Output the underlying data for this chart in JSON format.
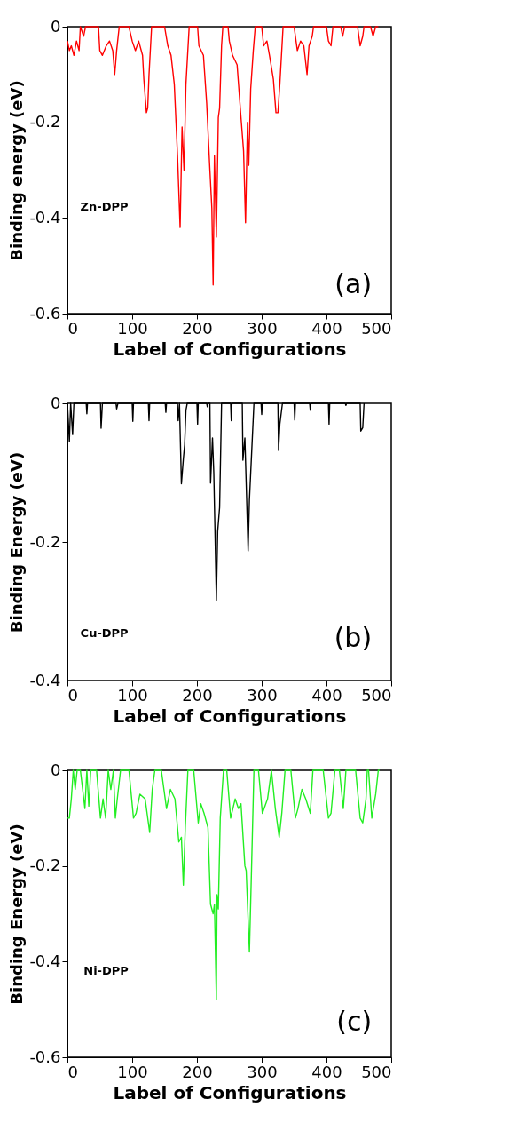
{
  "chart_data": [
    {
      "type": "line",
      "xlabel": "Label of Configurations",
      "ylabel": "Binding energy (eV)",
      "annotations": [
        "Zn-DPP",
        "(a)"
      ],
      "xlim": [
        0,
        500
      ],
      "xticks": [
        0,
        100,
        200,
        300,
        400,
        500
      ],
      "ylim": [
        -0.6,
        0
      ],
      "yticks": [
        0,
        -0.2,
        -0.4,
        -0.6
      ],
      "grid": false,
      "series": [
        {
          "color": "#ff0000",
          "x": [
            0,
            3,
            6,
            10,
            14,
            18,
            20,
            25,
            28,
            48,
            50,
            54,
            60,
            65,
            70,
            73,
            76,
            80,
            95,
            100,
            105,
            110,
            116,
            118,
            122,
            124,
            126,
            130,
            150,
            155,
            160,
            165,
            170,
            174,
            177,
            180,
            183,
            188,
            201,
            203,
            210,
            215,
            220,
            223,
            225,
            227,
            230,
            233,
            235,
            238,
            240,
            248,
            250,
            255,
            262,
            268,
            272,
            275,
            278,
            280,
            283,
            287,
            290,
            300,
            303,
            308,
            312,
            318,
            322,
            325,
            328,
            333,
            350,
            355,
            360,
            365,
            370,
            373,
            378,
            380,
            400,
            403,
            407,
            410,
            422,
            425,
            428,
            448,
            452,
            456,
            458,
            468,
            472,
            476,
            480
          ],
          "values": [
            -0.03,
            -0.05,
            -0.04,
            -0.06,
            -0.03,
            -0.05,
            0,
            -0.02,
            0,
            0,
            -0.05,
            -0.06,
            -0.04,
            -0.03,
            -0.05,
            -0.1,
            -0.05,
            0,
            0,
            -0.03,
            -0.05,
            -0.03,
            -0.06,
            -0.11,
            -0.18,
            -0.17,
            -0.1,
            0,
            0,
            -0.04,
            -0.06,
            -0.12,
            -0.27,
            -0.42,
            -0.21,
            -0.3,
            -0.12,
            0,
            0,
            -0.04,
            -0.06,
            -0.16,
            -0.3,
            -0.38,
            -0.54,
            -0.27,
            -0.44,
            -0.19,
            -0.17,
            -0.04,
            0,
            0,
            -0.03,
            -0.06,
            -0.08,
            -0.19,
            -0.26,
            -0.41,
            -0.2,
            -0.29,
            -0.13,
            -0.05,
            0,
            0,
            -0.04,
            -0.03,
            -0.06,
            -0.11,
            -0.18,
            -0.18,
            -0.12,
            0,
            0,
            -0.05,
            -0.03,
            -0.04,
            -0.1,
            -0.04,
            -0.02,
            0,
            0,
            -0.03,
            -0.04,
            0,
            0,
            -0.02,
            0,
            0,
            -0.04,
            -0.02,
            0,
            0,
            -0.02,
            0,
            0
          ]
        }
      ]
    },
    {
      "type": "line",
      "xlabel": "Label of Configurations",
      "ylabel": "Binding Energy (eV)",
      "annotations": [
        "Cu-DPP",
        "(b)"
      ],
      "xlim": [
        0,
        500
      ],
      "xticks": [
        0,
        100,
        200,
        300,
        400,
        500
      ],
      "ylim": [
        -0.4,
        0
      ],
      "yticks": [
        0,
        -0.2,
        -0.4
      ],
      "grid": false,
      "series": [
        {
          "color": "#000000",
          "x": [
            0,
            3,
            5,
            8,
            10,
            29,
            30,
            31,
            51,
            52,
            54,
            75,
            76,
            78,
            100,
            101,
            102,
            125,
            126,
            127,
            151,
            152,
            153,
            170,
            171,
            173,
            176,
            179,
            181,
            183,
            185,
            200,
            201,
            202,
            215,
            216,
            217,
            220,
            221,
            224,
            226,
            230,
            232,
            235,
            238,
            252,
            253,
            254,
            270,
            271,
            274,
            279,
            281,
            288,
            299,
            300,
            301,
            325,
            326,
            328,
            332,
            350,
            351,
            352,
            374,
            375,
            376,
            403,
            404,
            405,
            429,
            430,
            431,
            452,
            453,
            456,
            458
          ],
          "values": [
            0,
            -0.055,
            0,
            -0.045,
            0,
            0,
            -0.015,
            0,
            0,
            -0.036,
            0,
            0,
            -0.008,
            0,
            0,
            -0.026,
            0,
            0,
            -0.025,
            0,
            0,
            -0.013,
            0,
            0,
            -0.025,
            0,
            -0.116,
            -0.08,
            -0.06,
            -0.01,
            0,
            0,
            -0.03,
            0,
            0,
            -0.005,
            0,
            0,
            -0.115,
            -0.05,
            -0.1,
            -0.284,
            -0.185,
            -0.15,
            0,
            0,
            -0.025,
            0,
            0,
            -0.082,
            -0.05,
            -0.213,
            -0.14,
            0,
            0,
            -0.016,
            0,
            0,
            -0.068,
            -0.03,
            0,
            0,
            -0.024,
            0,
            0,
            -0.01,
            0,
            0,
            -0.03,
            0,
            0,
            -0.003,
            0,
            0,
            -0.04,
            -0.035,
            0
          ]
        }
      ]
    },
    {
      "type": "line",
      "xlabel": "Label of Configurations",
      "ylabel": "Binding Energy (eV)",
      "annotations": [
        "Ni-DPP",
        "(c)"
      ],
      "xlim": [
        0,
        500
      ],
      "xticks": [
        0,
        100,
        200,
        300,
        400,
        500
      ],
      "ylim": [
        -0.6,
        0
      ],
      "yticks": [
        0,
        -0.2,
        -0.4,
        -0.6
      ],
      "grid": false,
      "series": [
        {
          "color": "#22ee22",
          "x": [
            0,
            3,
            6,
            9,
            12,
            15,
            20,
            27,
            30,
            33,
            36,
            45,
            51,
            55,
            59,
            63,
            67,
            71,
            74,
            77,
            82,
            95,
            102,
            106,
            112,
            120,
            127,
            131,
            135,
            145,
            153,
            159,
            166,
            172,
            176,
            179,
            182,
            186,
            195,
            202,
            206,
            211,
            217,
            221,
            225,
            227,
            230,
            231,
            233,
            236,
            241,
            246,
            252,
            259,
            264,
            268,
            274,
            276,
            281,
            284,
            288,
            295,
            301,
            309,
            315,
            321,
            327,
            331,
            336,
            345,
            352,
            356,
            362,
            368,
            375,
            379,
            395,
            403,
            407,
            413,
            420,
            426,
            430,
            445,
            452,
            456,
            461,
            463,
            465,
            470,
            476,
            480,
            482
          ],
          "values": [
            -0.1,
            -0.1,
            -0.06,
            0,
            -0.04,
            0,
            0,
            -0.08,
            0,
            -0.075,
            0,
            0,
            -0.1,
            -0.06,
            -0.1,
            0,
            -0.04,
            0,
            -0.1,
            -0.06,
            0,
            0,
            -0.1,
            -0.09,
            -0.05,
            -0.06,
            -0.13,
            -0.04,
            0,
            0,
            -0.08,
            -0.04,
            -0.06,
            -0.15,
            -0.14,
            -0.24,
            -0.12,
            0,
            0,
            -0.11,
            -0.07,
            -0.09,
            -0.12,
            -0.28,
            -0.3,
            -0.28,
            -0.48,
            -0.26,
            -0.29,
            -0.1,
            0,
            0,
            -0.1,
            -0.06,
            -0.08,
            -0.07,
            -0.2,
            -0.21,
            -0.38,
            -0.22,
            0,
            0,
            -0.09,
            -0.06,
            0,
            -0.08,
            -0.14,
            -0.09,
            0,
            0,
            -0.1,
            -0.08,
            -0.04,
            -0.06,
            -0.09,
            0,
            0,
            -0.1,
            -0.09,
            0,
            0,
            -0.08,
            0,
            0,
            -0.1,
            -0.11,
            -0.06,
            0,
            0,
            -0.1,
            -0.05,
            0,
            0
          ]
        }
      ]
    }
  ]
}
